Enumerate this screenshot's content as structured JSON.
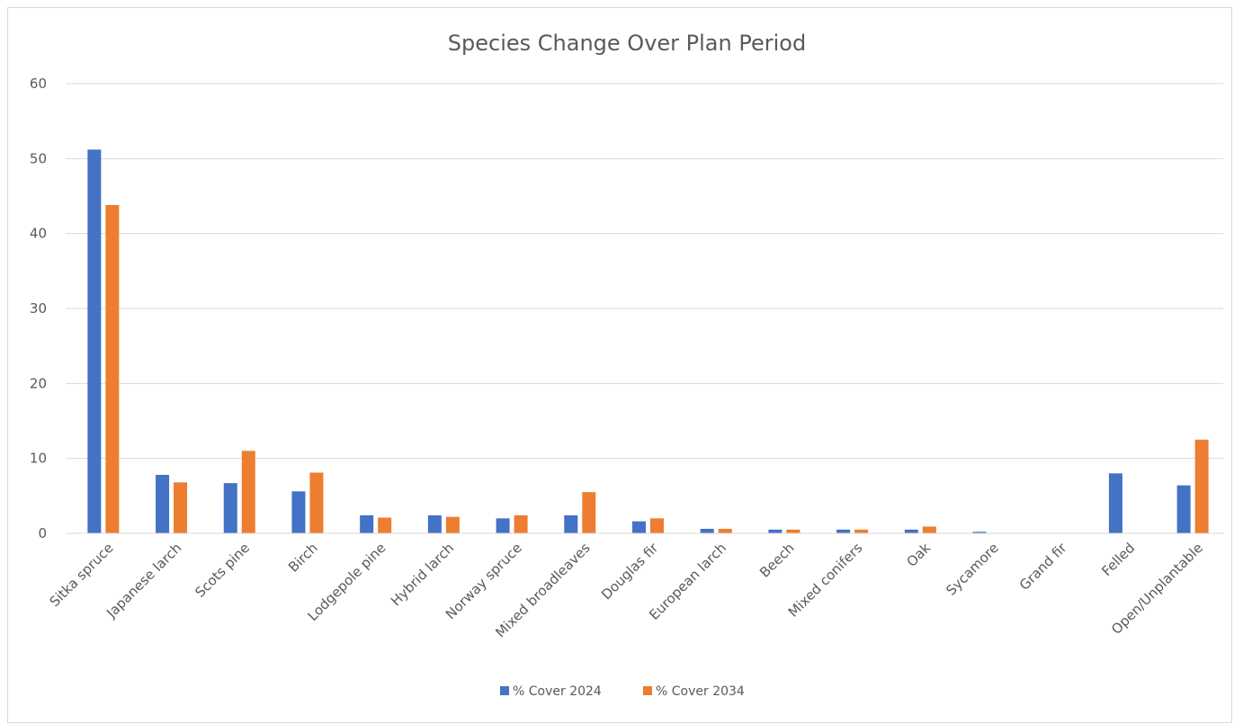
{
  "chart_data": {
    "type": "bar",
    "title": "Species Change Over Plan Period",
    "xlabel": "",
    "ylabel": "",
    "ylim": [
      0,
      60
    ],
    "yticks": [
      0,
      10,
      20,
      30,
      40,
      50,
      60
    ],
    "grid": true,
    "legend_position": "bottom",
    "categories": [
      "Sitka spruce",
      "Japanese larch",
      "Scots pine",
      "Birch",
      "Lodgepole pine",
      "Hybrid larch",
      "Norway spruce",
      "Mixed broadleaves",
      "Douglas fir",
      "European larch",
      "Beech",
      "Mixed conifers",
      "Oak",
      "Sycamore",
      "Grand fir",
      "Felled",
      "Open/Unplantable"
    ],
    "series": [
      {
        "name": "% Cover 2024",
        "color": "#4472C4",
        "values": [
          51.2,
          7.8,
          6.7,
          5.6,
          2.4,
          2.4,
          2.0,
          2.4,
          1.6,
          0.6,
          0.5,
          0.5,
          0.5,
          0.2,
          0.0,
          8.0,
          6.4
        ]
      },
      {
        "name": "% Cover 2034",
        "color": "#ED7D31",
        "values": [
          43.8,
          6.8,
          11.0,
          8.1,
          2.1,
          2.2,
          2.4,
          5.5,
          2.0,
          0.6,
          0.5,
          0.5,
          0.9,
          0.0,
          0.0,
          0.0,
          12.5
        ]
      }
    ]
  }
}
